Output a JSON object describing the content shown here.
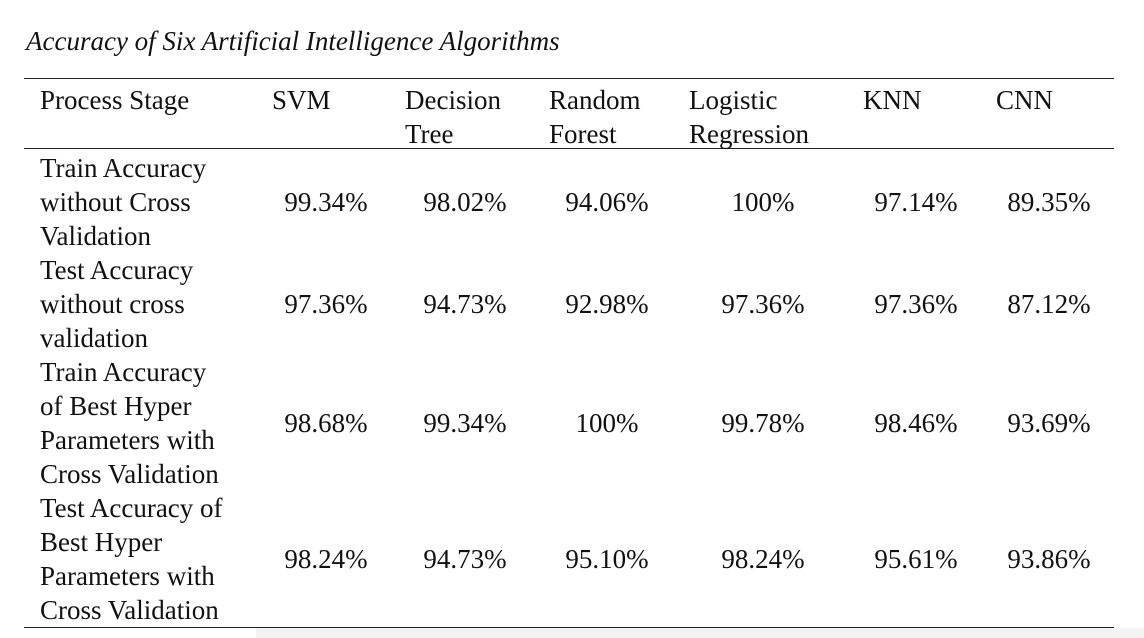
{
  "caption": "Accuracy of Six Artificial Intelligence Algorithms",
  "headers": {
    "stage": "Process Stage",
    "svm": "SVM",
    "dt1": "Decision",
    "dt2": "Tree",
    "rf1": "Random",
    "rf2": "Forest",
    "lr1": "Logistic",
    "lr2": "Regression",
    "knn": "KNN",
    "cnn": "CNN"
  },
  "rows": [
    {
      "stage": [
        "Train Accuracy",
        "without Cross",
        "Validation"
      ],
      "values": [
        "99.34%",
        "98.02%",
        "94.06%",
        "100%",
        "97.14%",
        "89.35%"
      ]
    },
    {
      "stage": [
        "Test Accuracy",
        "without cross",
        "validation"
      ],
      "values": [
        "97.36%",
        "94.73%",
        "92.98%",
        "97.36%",
        "97.36%",
        "87.12%"
      ]
    },
    {
      "stage": [
        "Train Accuracy",
        "of Best Hyper",
        "Parameters with",
        "Cross Validation"
      ],
      "values": [
        "98.68%",
        "99.34%",
        "100%",
        "99.78%",
        "98.46%",
        "93.69%"
      ]
    },
    {
      "stage": [
        "Test Accuracy of",
        "Best Hyper",
        "Parameters with",
        "Cross Validation"
      ],
      "values": [
        "98.24%",
        "94.73%",
        "95.10%",
        "98.24%",
        "95.61%",
        "93.86%"
      ]
    }
  ]
}
